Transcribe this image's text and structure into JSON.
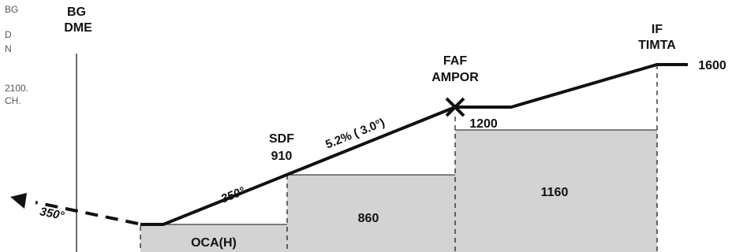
{
  "margin_note": {
    "line1": "BG",
    "line2": "D",
    "line3": "N",
    "line4": "2100.",
    "line5": "CH."
  },
  "labels": {
    "bg": "BG",
    "dme": "DME",
    "if": "IF",
    "timta": "TIMTA",
    "if_alt": "1600",
    "faf": "FAF",
    "ampor": "AMPOR",
    "faf_alt": "1200",
    "sdf": "SDF",
    "sdf_alt": "910",
    "gradient": "5.2% ( 3.0°)",
    "track_inbound": "350°",
    "track_missed": "350°",
    "box_sdf": "860",
    "box_faf": "1160",
    "box_oca": "OCA(H)"
  },
  "colors": {
    "line": "#111111",
    "box_fill": "#d3d3d3",
    "dashed": "#111111"
  }
}
